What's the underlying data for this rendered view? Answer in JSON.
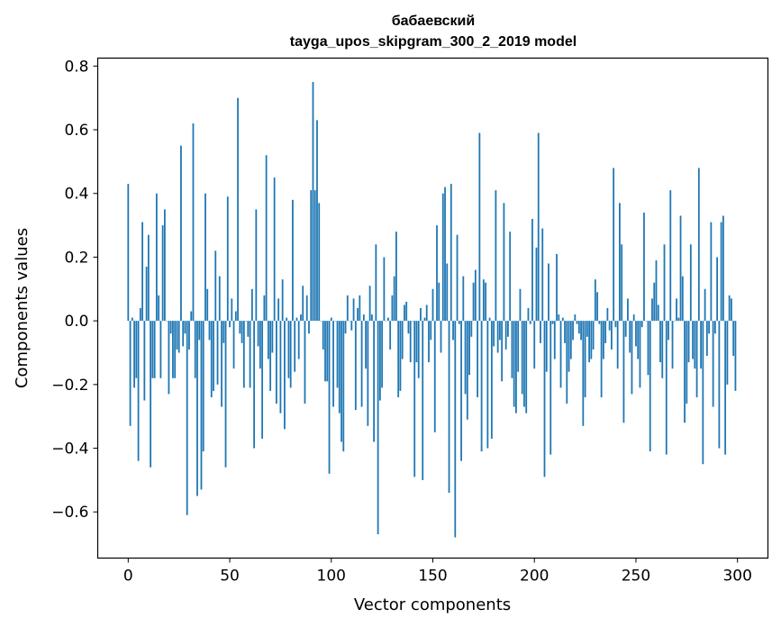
{
  "chart_data": {
    "type": "bar",
    "title": "бабаевский",
    "subtitle": "tayga_upos_skipgram_300_2_2019 model",
    "xlabel": "Vector components",
    "ylabel": "Components values",
    "xlim": [
      -15,
      315
    ],
    "ylim": [
      -0.745,
      0.825
    ],
    "xticks": [
      0,
      50,
      100,
      150,
      200,
      250,
      300
    ],
    "yticks": [
      -0.6,
      -0.4,
      -0.2,
      0.0,
      0.2,
      0.4,
      0.6,
      0.8
    ],
    "ytick_labels": [
      "−0.6",
      "−0.4",
      "−0.2",
      "0.0",
      "0.2",
      "0.4",
      "0.6",
      "0.8"
    ],
    "grid": false,
    "bar_color": "#1f77b4",
    "x": "indices 0..299",
    "values": [
      0.43,
      -0.33,
      0.01,
      -0.21,
      -0.18,
      -0.44,
      0.04,
      0.31,
      -0.25,
      0.17,
      0.27,
      -0.46,
      -0.18,
      -0.18,
      0.4,
      0.08,
      -0.18,
      0.3,
      0.35,
      0.0,
      -0.23,
      -0.04,
      -0.18,
      -0.18,
      -0.09,
      -0.1,
      0.55,
      -0.08,
      -0.04,
      -0.61,
      -0.09,
      0.03,
      0.62,
      -0.18,
      -0.55,
      -0.06,
      -0.53,
      -0.41,
      0.4,
      0.1,
      -0.06,
      -0.24,
      -0.22,
      0.22,
      -0.2,
      0.14,
      -0.27,
      -0.07,
      -0.46,
      0.39,
      -0.02,
      0.07,
      -0.15,
      0.03,
      0.7,
      -0.04,
      -0.07,
      -0.21,
      0.0,
      -0.05,
      -0.21,
      0.1,
      -0.4,
      0.35,
      -0.08,
      -0.15,
      -0.37,
      0.08,
      0.52,
      -0.12,
      -0.22,
      -0.1,
      0.45,
      -0.26,
      0.07,
      -0.29,
      0.13,
      -0.34,
      0.01,
      -0.18,
      -0.21,
      0.38,
      -0.16,
      0.01,
      -0.12,
      0.02,
      0.11,
      -0.26,
      0.08,
      -0.04,
      0.41,
      0.75,
      0.41,
      0.63,
      0.37,
      0.0,
      -0.09,
      -0.19,
      -0.19,
      -0.48,
      0.01,
      -0.27,
      0.0,
      -0.21,
      -0.29,
      -0.38,
      -0.41,
      -0.04,
      0.08,
      0.0,
      -0.03,
      0.07,
      -0.28,
      0.04,
      0.08,
      -0.27,
      0.02,
      -0.15,
      -0.33,
      0.11,
      0.02,
      -0.38,
      0.24,
      -0.67,
      -0.25,
      -0.21,
      0.2,
      0.0,
      0.01,
      -0.09,
      0.08,
      0.14,
      0.28,
      -0.24,
      -0.22,
      -0.12,
      0.05,
      0.06,
      -0.04,
      -0.13,
      0.0,
      -0.49,
      -0.13,
      -0.18,
      0.04,
      -0.5,
      0.01,
      0.05,
      -0.13,
      -0.06,
      0.1,
      -0.35,
      0.3,
      0.12,
      -0.1,
      0.4,
      0.42,
      0.18,
      -0.54,
      0.43,
      -0.06,
      -0.68,
      0.27,
      -0.01,
      -0.44,
      0.14,
      -0.23,
      -0.31,
      -0.17,
      -0.05,
      0.12,
      0.16,
      -0.24,
      0.59,
      -0.41,
      0.13,
      0.12,
      -0.4,
      0.01,
      -0.37,
      -0.08,
      0.41,
      -0.1,
      -0.06,
      -0.19,
      0.37,
      -0.09,
      -0.05,
      0.28,
      -0.18,
      -0.27,
      -0.29,
      -0.16,
      0.1,
      -0.23,
      -0.27,
      -0.29,
      0.04,
      -0.01,
      0.32,
      -0.15,
      0.23,
      0.59,
      -0.07,
      0.29,
      -0.49,
      -0.16,
      0.18,
      -0.42,
      -0.01,
      -0.12,
      0.21,
      0.02,
      -0.21,
      0.01,
      -0.07,
      -0.26,
      -0.16,
      -0.12,
      -0.06,
      0.02,
      -0.01,
      -0.04,
      -0.06,
      -0.33,
      -0.24,
      -0.05,
      -0.13,
      -0.12,
      -0.09,
      0.13,
      0.09,
      -0.01,
      -0.24,
      -0.12,
      -0.07,
      0.04,
      -0.03,
      -0.09,
      0.48,
      -0.02,
      -0.15,
      0.37,
      0.24,
      -0.32,
      -0.05,
      0.07,
      -0.1,
      -0.23,
      0.02,
      -0.08,
      -0.12,
      -0.21,
      -0.02,
      0.34,
      0.0,
      -0.17,
      -0.41,
      0.07,
      0.12,
      0.19,
      0.05,
      -0.13,
      -0.18,
      0.24,
      -0.42,
      -0.06,
      0.41,
      -0.15,
      0.0,
      0.07,
      0.01,
      0.33,
      0.14,
      -0.32,
      -0.26,
      -0.13,
      0.24,
      -0.12,
      -0.15,
      -0.24,
      0.48,
      -0.15,
      -0.45,
      0.1,
      -0.11,
      -0.04,
      0.31,
      -0.27,
      -0.04,
      0.2,
      -0.4,
      0.31,
      0.33,
      -0.42,
      -0.2,
      0.08,
      0.07,
      -0.11,
      -0.22
    ]
  }
}
